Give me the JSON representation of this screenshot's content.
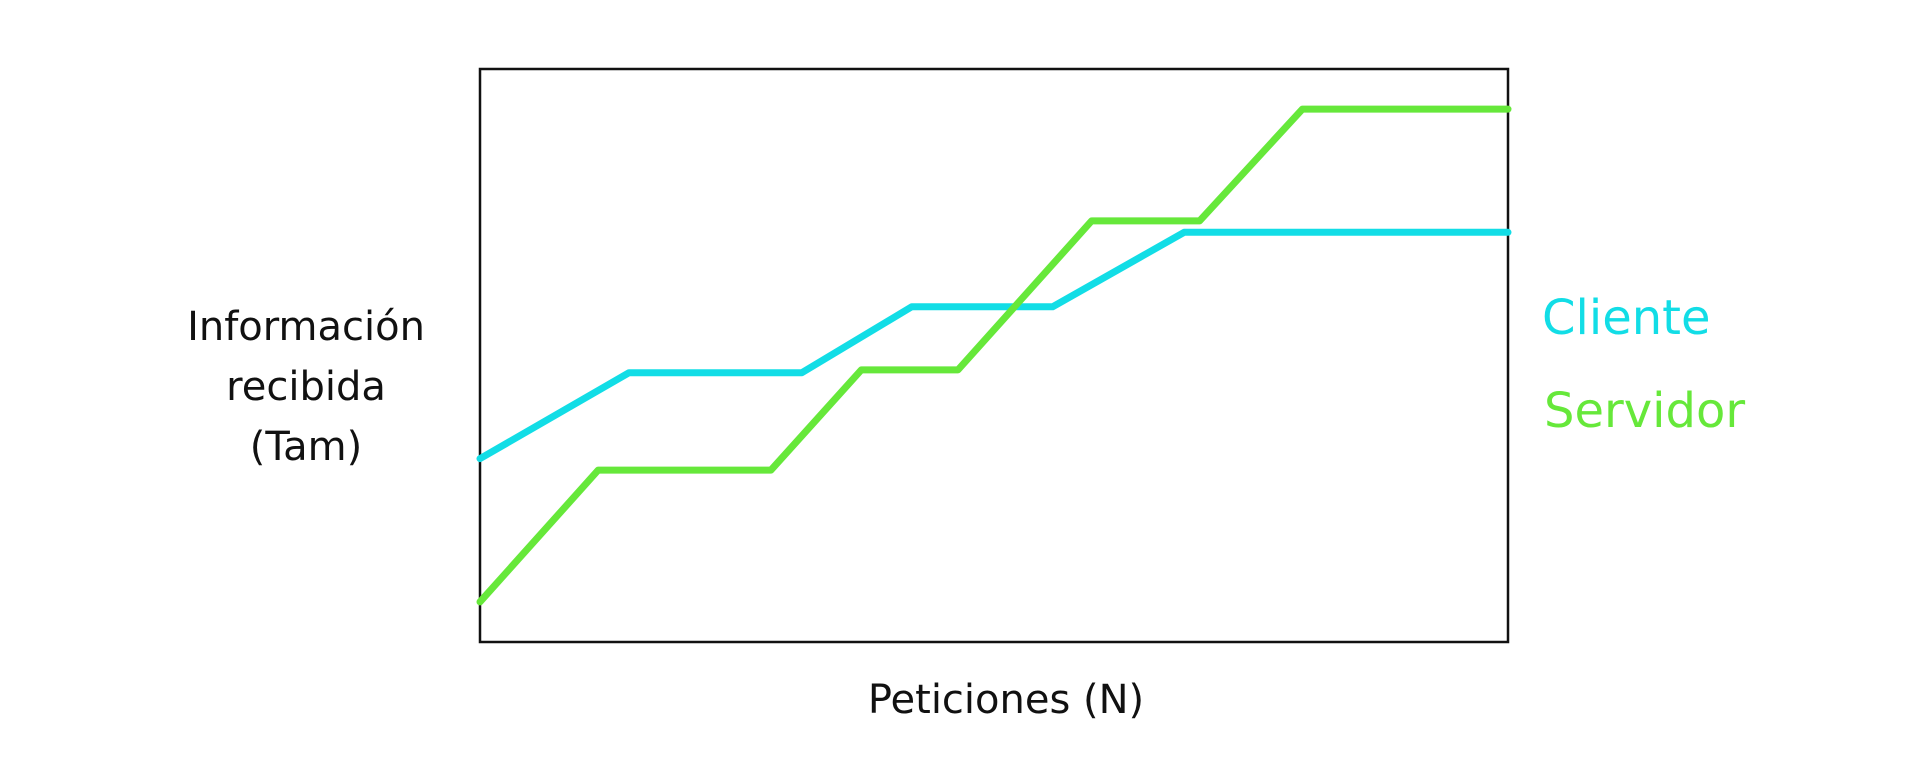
{
  "chart_data": {
    "type": "line",
    "title": "",
    "xlabel": "Peticiones (N)",
    "ylabel_lines": [
      "Información",
      "recibida",
      "(Tam)"
    ],
    "xlim": [
      0,
      100
    ],
    "ylim": [
      0,
      100
    ],
    "grid": false,
    "axis_ticks": false,
    "legend_position": "right",
    "series": [
      {
        "name": "Cliente",
        "color": "#12dde6",
        "points": [
          [
            0,
            32
          ],
          [
            14.5,
            47
          ],
          [
            31.3,
            47
          ],
          [
            42,
            58.5
          ],
          [
            55.7,
            58.5
          ],
          [
            68.5,
            71.5
          ],
          [
            100,
            71.5
          ]
        ]
      },
      {
        "name": "Servidor",
        "color": "#66e83a",
        "points": [
          [
            0,
            7
          ],
          [
            11.5,
            30
          ],
          [
            28.3,
            30
          ],
          [
            37.1,
            47.5
          ],
          [
            46.5,
            47.5
          ],
          [
            59.5,
            73.5
          ],
          [
            70,
            73.5
          ],
          [
            80,
            93
          ],
          [
            100,
            93
          ]
        ]
      }
    ]
  }
}
